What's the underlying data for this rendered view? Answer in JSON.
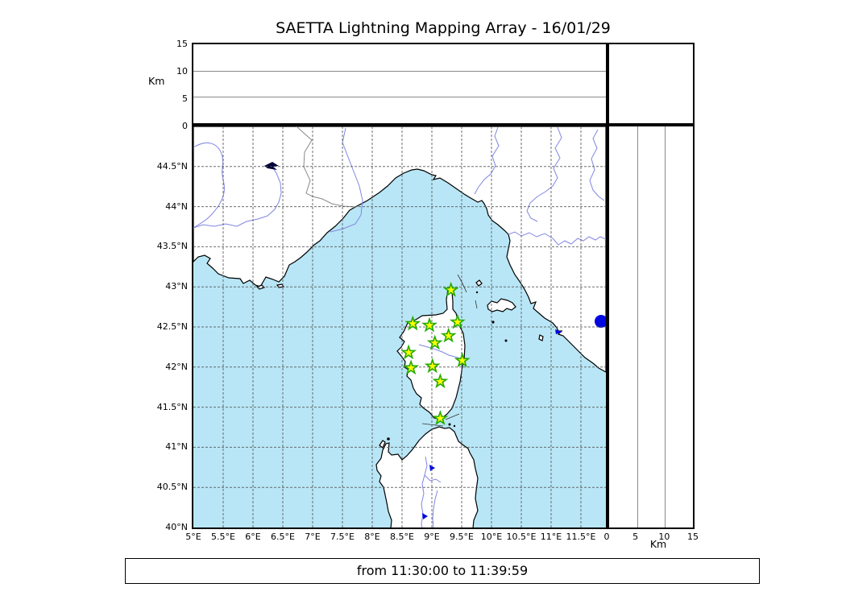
{
  "title": "SAETTA Lightning Mapping Array - 16/01/29",
  "footer": {
    "time_range": "from 11:30:00 to 11:39:59"
  },
  "colors": {
    "sea": "#b8e6f6",
    "land": "#ffffff",
    "coast": "#000000",
    "river": "#8086e0",
    "admin_border": "#8a8a8a",
    "grid": "#555555",
    "lake": "#0008e0",
    "dark_lake": "#00003a",
    "star_fill": "#ffff00",
    "star_stroke": "#22aa00"
  },
  "axes": {
    "altitude_unit": "Km",
    "alt_ticks_left": [
      {
        "label": "15",
        "km": 15
      },
      {
        "label": "10",
        "km": 10
      },
      {
        "label": "5",
        "km": 5
      },
      {
        "label": "0",
        "km": 0
      }
    ],
    "alt_ticks_right": [
      {
        "label": "0",
        "km": 0
      },
      {
        "label": "5",
        "km": 5
      },
      {
        "label": "10",
        "km": 10
      },
      {
        "label": "15",
        "km": 15
      }
    ],
    "lat_ticks": [
      {
        "label": "44.5°N",
        "lat": 44.5
      },
      {
        "label": "44°N",
        "lat": 44.0
      },
      {
        "label": "43.5°N",
        "lat": 43.5
      },
      {
        "label": "43°N",
        "lat": 43.0
      },
      {
        "label": "42.5°N",
        "lat": 42.5
      },
      {
        "label": "42°N",
        "lat": 42.0
      },
      {
        "label": "41.5°N",
        "lat": 41.5
      },
      {
        "label": "41°N",
        "lat": 41.0
      },
      {
        "label": "40.5°N",
        "lat": 40.5
      },
      {
        "label": "40°N",
        "lat": 40.0
      }
    ],
    "lon_ticks": [
      {
        "label": "5°E",
        "lon": 5.0
      },
      {
        "label": "5.5°E",
        "lon": 5.5
      },
      {
        "label": "6°E",
        "lon": 6.0
      },
      {
        "label": "6.5°E",
        "lon": 6.5
      },
      {
        "label": "7°E",
        "lon": 7.0
      },
      {
        "label": "7.5°E",
        "lon": 7.5
      },
      {
        "label": "8°E",
        "lon": 8.0
      },
      {
        "label": "8.5°E",
        "lon": 8.5
      },
      {
        "label": "9°E",
        "lon": 9.0
      },
      {
        "label": "9.5°E",
        "lon": 9.5
      },
      {
        "label": "10°E",
        "lon": 10.0
      },
      {
        "label": "10.5°E",
        "lon": 10.5
      },
      {
        "label": "11°E",
        "lon": 11.0
      },
      {
        "label": "11.5°E",
        "lon": 11.5
      }
    ]
  },
  "chart_data": {
    "type": "map",
    "lon_range_deg_E": [
      5.0,
      11.92
    ],
    "lat_range_deg_N": [
      40.0,
      45.0
    ],
    "altitude_panel_range_km": [
      0,
      15
    ],
    "grid_interval_deg": 0.5,
    "station_marker": "green-yellow star",
    "stations": [
      {
        "lon": 9.32,
        "lat": 42.96
      },
      {
        "lon": 8.68,
        "lat": 42.54
      },
      {
        "lon": 8.96,
        "lat": 42.52
      },
      {
        "lon": 9.43,
        "lat": 42.56
      },
      {
        "lon": 9.28,
        "lat": 42.39
      },
      {
        "lon": 9.05,
        "lat": 42.3
      },
      {
        "lon": 8.61,
        "lat": 42.18
      },
      {
        "lon": 9.51,
        "lat": 42.08
      },
      {
        "lon": 8.65,
        "lat": 41.99
      },
      {
        "lon": 9.01,
        "lat": 42.01
      },
      {
        "lon": 9.14,
        "lat": 41.82
      },
      {
        "lon": 9.14,
        "lat": 41.36
      }
    ],
    "lightning_points_plotted": 0
  }
}
